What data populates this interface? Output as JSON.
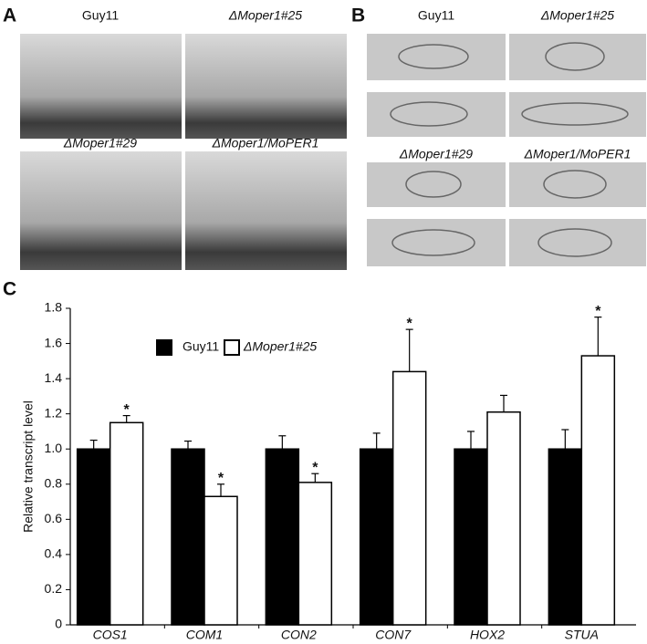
{
  "panels": {
    "letters": [
      "A",
      "B",
      "C"
    ],
    "panel_a": {
      "labels": [
        "Guy11",
        "ΔMoper1#25",
        "ΔMoper1#29",
        "ΔMoper1/MoPER1"
      ]
    },
    "panel_b": {
      "labels": [
        "Guy11",
        "ΔMoper1#25",
        "ΔMoper1#29",
        "ΔMoper1/MoPER1"
      ]
    }
  },
  "chart_data": {
    "type": "bar",
    "y_label": "Relative transcript level",
    "categories": [
      "COS1",
      "COM1",
      "CON2",
      "CON7",
      "HOX2",
      "STUA"
    ],
    "series": [
      {
        "name": "Guy11",
        "color": "#000000",
        "values": [
          1,
          1,
          1,
          1,
          1,
          1
        ],
        "errors": [
          0.05,
          0.045,
          0.075,
          0.09,
          0.1,
          0.11
        ]
      },
      {
        "name": "ΔMoper1#25",
        "color": "#ffffff",
        "values": [
          1.15,
          0.73,
          0.81,
          1.44,
          1.21,
          1.53
        ],
        "errors": [
          0.04,
          0.07,
          0.05,
          0.24,
          0.095,
          0.22
        ],
        "significance": [
          "*",
          "*",
          "*",
          "*",
          null,
          "*"
        ]
      }
    ],
    "ylim": [
      0,
      1.8
    ],
    "yticks": [
      0,
      0.2,
      0.4,
      0.6,
      0.8,
      {
        "value": 1,
        "label": "1.0"
      },
      1.2,
      1.4,
      1.6,
      1.8
    ],
    "grid": false
  }
}
